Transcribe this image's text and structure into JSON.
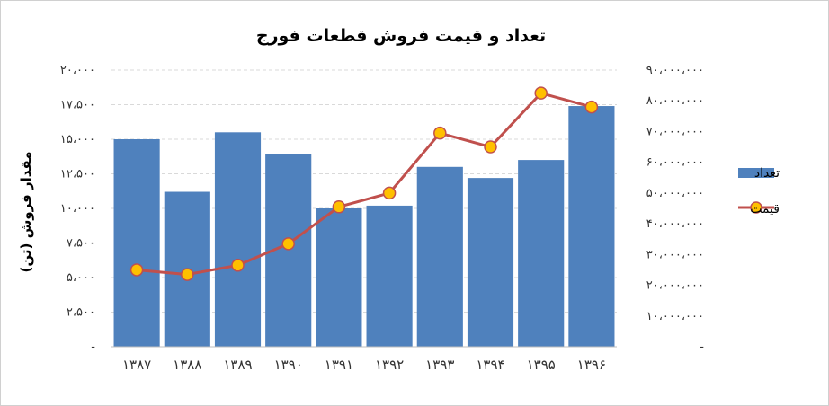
{
  "chart_data": {
    "type": "bar+line",
    "title": "تعداد و قیمت فروش قطعات فورج",
    "ylabel": "مقدار فروش (تن)",
    "categories": [
      "۱۳۸۷",
      "۱۳۸۸",
      "۱۳۸۹",
      "۱۳۹۰",
      "۱۳۹۱",
      "۱۳۹۲",
      "۱۳۹۳",
      "۱۳۹۴",
      "۱۳۹۵",
      "۱۳۹۶"
    ],
    "series": [
      {
        "name": "تعداد",
        "kind": "bar",
        "axis": "left",
        "color": "#4f81bd",
        "values": [
          15000,
          11200,
          15500,
          13900,
          10000,
          10200,
          13000,
          12200,
          13500,
          17400
        ]
      },
      {
        "name": "قیمت",
        "kind": "line",
        "axis": "right",
        "line_color": "#c0504d",
        "marker_fill": "#ffc000",
        "values": [
          25000000,
          23500000,
          26500000,
          33500000,
          45500000,
          50000000,
          69500000,
          65000000,
          82500000,
          78000000
        ]
      }
    ],
    "y_left": {
      "ylim": [
        0,
        20000
      ],
      "ticks": [
        0,
        2500,
        5000,
        7500,
        10000,
        12500,
        15000,
        17500,
        20000
      ],
      "tick_labels": [
        "-",
        "۲،۵۰۰",
        "۵،۰۰۰",
        "۷،۵۰۰",
        "۱۰،۰۰۰",
        "۱۲،۵۰۰",
        "۱۵،۰۰۰",
        "۱۷،۵۰۰",
        "۲۰،۰۰۰"
      ]
    },
    "y_right": {
      "ylim": [
        0,
        90000000
      ],
      "ticks": [
        0,
        10000000,
        20000000,
        30000000,
        40000000,
        50000000,
        60000000,
        70000000,
        80000000,
        90000000
      ],
      "tick_labels": [
        "-",
        "۱۰،۰۰۰،۰۰۰",
        "۲۰،۰۰۰،۰۰۰",
        "۳۰،۰۰۰،۰۰۰",
        "۴۰،۰۰۰،۰۰۰",
        "۵۰،۰۰۰،۰۰۰",
        "۶۰،۰۰۰،۰۰۰",
        "۷۰،۰۰۰،۰۰۰",
        "۸۰،۰۰۰،۰۰۰",
        "۹۰،۰۰۰،۰۰۰"
      ]
    },
    "grid": true,
    "legend": "right"
  }
}
